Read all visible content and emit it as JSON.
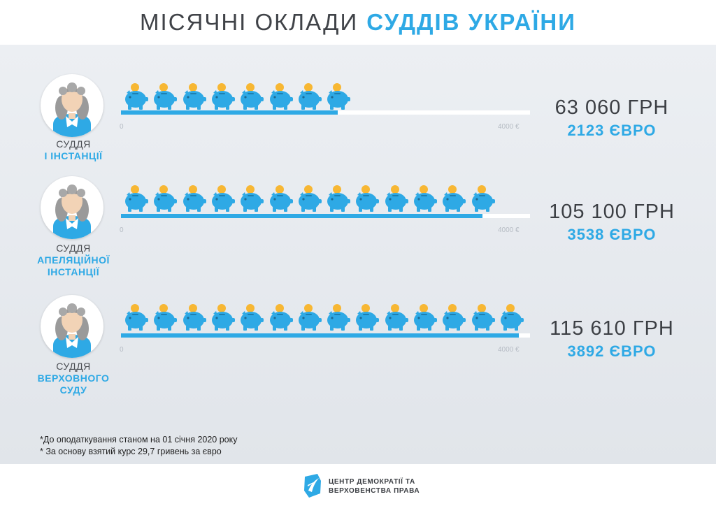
{
  "title": {
    "part1": "МІСЯЧНІ ОКЛАДИ",
    "part2": "СУДДІВ УКРАЇНИ"
  },
  "colors": {
    "accent": "#2ea9e5",
    "coin": "#f7b733",
    "text": "#3c3f44",
    "track": "#ffffff"
  },
  "icons": {
    "pig": "piggy-bank-icon",
    "judge": "judge-avatar-icon",
    "logo": "cdrl-logo-icon"
  },
  "chart_data": {
    "type": "bar",
    "orientation": "horizontal",
    "categories": [
      "СУДДЯ І ІНСТАНЦІЇ",
      "СУДДЯ АПЕЛЯЦІЙНОЇ ІНСТАНЦІЇ",
      "СУДДЯ ВЕРХОВНОГО СУДУ"
    ],
    "series": [
      {
        "name": "ГРН",
        "values": [
          63060,
          105100,
          115610
        ]
      },
      {
        "name": "ЄВРО",
        "values": [
          2123,
          3538,
          3892
        ]
      }
    ],
    "xlim": [
      0,
      4000
    ],
    "tick_labels": [
      "0",
      "4000 €"
    ],
    "pictogram_counts": [
      8,
      13,
      14
    ]
  },
  "rows": [
    {
      "role_line1": "СУДДЯ",
      "role_line2": "І ІНСТАНЦІЇ",
      "role_line3": "",
      "uah": "63 060 ГРН",
      "eur": "2123 ЄВРО",
      "tick_min": "0",
      "tick_max": "4000 €"
    },
    {
      "role_line1": "СУДДЯ",
      "role_line2": "АПЕЛЯЦІЙНОЇ",
      "role_line3": "ІНСТАНЦІЇ",
      "uah": "105 100 ГРН",
      "eur": "3538 ЄВРО",
      "tick_min": "0",
      "tick_max": "4000 €"
    },
    {
      "role_line1": "СУДДЯ",
      "role_line2": "ВЕРХОВНОГО",
      "role_line3": "СУДУ",
      "uah": "115 610 ГРН",
      "eur": "3892 ЄВРО",
      "tick_min": "0",
      "tick_max": "4000 €"
    }
  ],
  "notes": [
    "*До оподаткування станом на 01 січня 2020 року",
    "* За основу взятий курс 29,7 гривень за євро"
  ],
  "footer": {
    "org_line1": "ЦЕНТР ДЕМОКРАТІЇ ТА",
    "org_line2": "ВЕРХОВЕНСТВА ПРАВА"
  }
}
